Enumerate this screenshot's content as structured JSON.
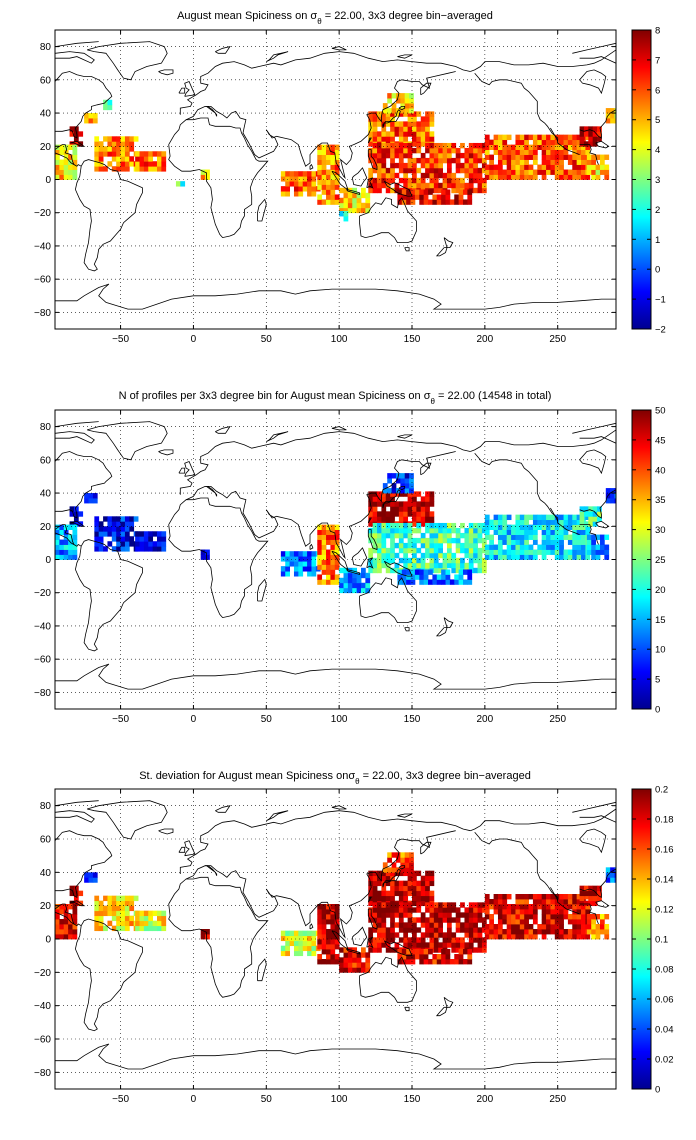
{
  "chart_data": [
    {
      "type": "heatmap",
      "title": {
        "pre": "August mean Spiciness on ",
        "sigma": "σ",
        "sub": "θ",
        "post": " = 22.00, 3x3 degree bin−averaged"
      },
      "xlim": [
        -95,
        290
      ],
      "ylim": [
        -90,
        90
      ],
      "xticks": [
        -50,
        0,
        50,
        100,
        150,
        200,
        250
      ],
      "yticks": [
        -80,
        -60,
        -40,
        -20,
        0,
        20,
        40,
        60,
        80
      ],
      "grid": true,
      "colorbar": {
        "min": -2,
        "max": 8,
        "ticks": [
          -2,
          -1,
          0,
          1,
          2,
          3,
          4,
          5,
          6,
          7,
          8
        ],
        "labels": [
          "−2",
          "−1",
          "0",
          "1",
          "2",
          "3",
          "4",
          "5",
          "6",
          "7",
          "8"
        ]
      },
      "cell_deg": 3,
      "regions": [
        {
          "lon": [
            -85,
            -78
          ],
          "lat": [
            20,
            32
          ],
          "value": 7.6
        },
        {
          "lon": [
            -95,
            -80
          ],
          "lat": [
            0,
            20
          ],
          "value": 4.6
        },
        {
          "lon": [
            -68,
            -40
          ],
          "lat": [
            5,
            25
          ],
          "value": 5.6
        },
        {
          "lon": [
            -40,
            -20
          ],
          "lat": [
            5,
            15
          ],
          "value": 5.7
        },
        {
          "lon": [
            -75,
            -68
          ],
          "lat": [
            34,
            40
          ],
          "value": 4.8
        },
        {
          "lon": [
            -62,
            -58
          ],
          "lat": [
            42,
            46
          ],
          "value": 2.2
        },
        {
          "lon": [
            -12,
            -8
          ],
          "lat": [
            -4,
            -1
          ],
          "value": 2.0
        },
        {
          "lon": [
            5,
            10
          ],
          "lat": [
            0,
            4
          ],
          "value": 4.6
        },
        {
          "lon": [
            60,
            85
          ],
          "lat": [
            -10,
            5
          ],
          "value": 5.8
        },
        {
          "lon": [
            85,
            100
          ],
          "lat": [
            -15,
            20
          ],
          "value": 5.4
        },
        {
          "lon": [
            100,
            120
          ],
          "lat": [
            -20,
            -5
          ],
          "value": 4.6
        },
        {
          "lon": [
            100,
            105
          ],
          "lat": [
            -25,
            -21
          ],
          "value": 2.0
        },
        {
          "lon": [
            120,
            165
          ],
          "lat": [
            20,
            40
          ],
          "value": 5.9
        },
        {
          "lon": [
            130,
            150
          ],
          "lat": [
            40,
            50
          ],
          "value": 4.6
        },
        {
          "lon": [
            120,
            200
          ],
          "lat": [
            -8,
            20
          ],
          "value": 6.3
        },
        {
          "lon": [
            140,
            190
          ],
          "lat": [
            -15,
            -8
          ],
          "value": 6.9
        },
        {
          "lon": [
            200,
            270
          ],
          "lat": [
            0,
            25
          ],
          "value": 5.9
        },
        {
          "lon": [
            270,
            285
          ],
          "lat": [
            0,
            15
          ],
          "value": 4.7
        },
        {
          "lon": [
            265,
            278
          ],
          "lat": [
            20,
            32
          ],
          "value": 7.6
        },
        {
          "lon": [
            283,
            290
          ],
          "lat": [
            34,
            42
          ],
          "value": 4.6
        }
      ]
    },
    {
      "type": "heatmap",
      "title": {
        "pre": "N of profiles per 3x3 degree bin for August mean Spiciness on ",
        "sigma": "σ",
        "sub": "θ",
        "post": " = 22.00 (14548 in total)"
      },
      "xlim": [
        -95,
        290
      ],
      "ylim": [
        -90,
        90
      ],
      "xticks": [
        -50,
        0,
        50,
        100,
        150,
        200,
        250
      ],
      "yticks": [
        -80,
        -60,
        -40,
        -20,
        0,
        20,
        40,
        60,
        80
      ],
      "grid": true,
      "colorbar": {
        "min": 0,
        "max": 50,
        "ticks": [
          0,
          5,
          10,
          15,
          20,
          25,
          30,
          35,
          40,
          45,
          50
        ],
        "labels": [
          "0",
          "5",
          "10",
          "15",
          "20",
          "25",
          "30",
          "35",
          "40",
          "45",
          "50"
        ]
      },
      "cell_deg": 3,
      "regions": [
        {
          "lon": [
            -85,
            -78
          ],
          "lat": [
            20,
            32
          ],
          "value": 4
        },
        {
          "lon": [
            -95,
            -80
          ],
          "lat": [
            0,
            20
          ],
          "value": 14
        },
        {
          "lon": [
            -68,
            -40
          ],
          "lat": [
            5,
            25
          ],
          "value": 6
        },
        {
          "lon": [
            -40,
            -20
          ],
          "lat": [
            5,
            15
          ],
          "value": 4
        },
        {
          "lon": [
            -75,
            -68
          ],
          "lat": [
            34,
            40
          ],
          "value": 3
        },
        {
          "lon": [
            5,
            10
          ],
          "lat": [
            0,
            4
          ],
          "value": 3
        },
        {
          "lon": [
            60,
            85
          ],
          "lat": [
            -10,
            5
          ],
          "value": 12
        },
        {
          "lon": [
            85,
            100
          ],
          "lat": [
            -15,
            20
          ],
          "value": 38
        },
        {
          "lon": [
            100,
            120
          ],
          "lat": [
            -20,
            -5
          ],
          "value": 15
        },
        {
          "lon": [
            120,
            165
          ],
          "lat": [
            20,
            40
          ],
          "value": 47
        },
        {
          "lon": [
            130,
            150
          ],
          "lat": [
            40,
            50
          ],
          "value": 8
        },
        {
          "lon": [
            120,
            200
          ],
          "lat": [
            -8,
            20
          ],
          "value": 22
        },
        {
          "lon": [
            140,
            190
          ],
          "lat": [
            -15,
            -8
          ],
          "value": 12
        },
        {
          "lon": [
            200,
            270
          ],
          "lat": [
            0,
            25
          ],
          "value": 18
        },
        {
          "lon": [
            270,
            285
          ],
          "lat": [
            0,
            15
          ],
          "value": 15
        },
        {
          "lon": [
            265,
            278
          ],
          "lat": [
            20,
            32
          ],
          "value": 22
        },
        {
          "lon": [
            283,
            290
          ],
          "lat": [
            34,
            42
          ],
          "value": 8
        }
      ]
    },
    {
      "type": "heatmap",
      "title": {
        "pre": "St. deviation for August mean Spiciness on",
        "sigma": "σ",
        "sub": "θ",
        "post": " = 22.00, 3x3 degree bin−averaged"
      },
      "xlim": [
        -95,
        290
      ],
      "ylim": [
        -90,
        90
      ],
      "xticks": [
        -50,
        0,
        50,
        100,
        150,
        200,
        250
      ],
      "yticks": [
        -80,
        -60,
        -40,
        -20,
        0,
        20,
        40,
        60,
        80
      ],
      "grid": true,
      "colorbar": {
        "min": 0,
        "max": 0.2,
        "ticks": [
          0,
          0.02,
          0.04,
          0.06,
          0.08,
          0.1,
          0.12,
          0.14,
          0.16,
          0.18,
          0.2
        ],
        "labels": [
          "0",
          "0.02",
          "0.04",
          "0.06",
          "0.08",
          "0.1",
          "0.12",
          "0.14",
          "0.16",
          "0.18",
          "0.2"
        ]
      },
      "cell_deg": 3,
      "regions": [
        {
          "lon": [
            -85,
            -78
          ],
          "lat": [
            20,
            32
          ],
          "value": 0.19
        },
        {
          "lon": [
            -95,
            -80
          ],
          "lat": [
            0,
            20
          ],
          "value": 0.18
        },
        {
          "lon": [
            -68,
            -40
          ],
          "lat": [
            5,
            25
          ],
          "value": 0.13
        },
        {
          "lon": [
            -40,
            -20
          ],
          "lat": [
            5,
            15
          ],
          "value": 0.12
        },
        {
          "lon": [
            -75,
            -68
          ],
          "lat": [
            34,
            40
          ],
          "value": 0.03
        },
        {
          "lon": [
            5,
            10
          ],
          "lat": [
            0,
            4
          ],
          "value": 0.19
        },
        {
          "lon": [
            60,
            85
          ],
          "lat": [
            -10,
            5
          ],
          "value": 0.12
        },
        {
          "lon": [
            85,
            100
          ],
          "lat": [
            -15,
            20
          ],
          "value": 0.19
        },
        {
          "lon": [
            100,
            120
          ],
          "lat": [
            -20,
            -5
          ],
          "value": 0.18
        },
        {
          "lon": [
            120,
            165
          ],
          "lat": [
            20,
            40
          ],
          "value": 0.19
        },
        {
          "lon": [
            130,
            150
          ],
          "lat": [
            40,
            50
          ],
          "value": 0.16
        },
        {
          "lon": [
            120,
            200
          ],
          "lat": [
            -8,
            20
          ],
          "value": 0.19
        },
        {
          "lon": [
            140,
            190
          ],
          "lat": [
            -15,
            -8
          ],
          "value": 0.18
        },
        {
          "lon": [
            200,
            270
          ],
          "lat": [
            0,
            25
          ],
          "value": 0.18
        },
        {
          "lon": [
            270,
            285
          ],
          "lat": [
            0,
            15
          ],
          "value": 0.15
        },
        {
          "lon": [
            265,
            278
          ],
          "lat": [
            20,
            32
          ],
          "value": 0.19
        },
        {
          "lon": [
            283,
            290
          ],
          "lat": [
            34,
            42
          ],
          "value": 0.05
        }
      ]
    }
  ]
}
